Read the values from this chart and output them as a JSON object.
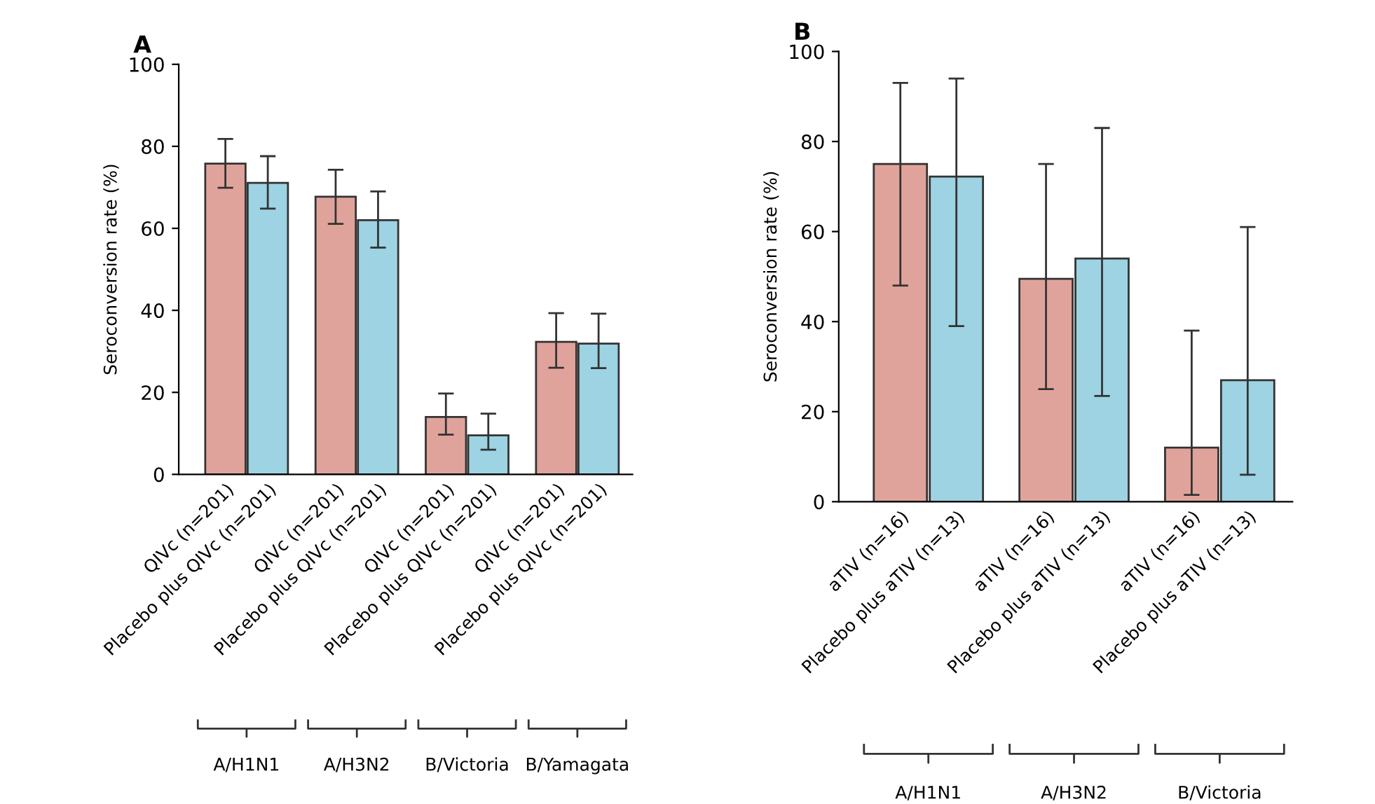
{
  "chart_data": [
    {
      "type": "bar",
      "title": "A",
      "ylabel": "Seroconversion rate (%)",
      "categories": [
        "QIVc (n=201)",
        "Placebo plus QIVc (n=201)",
        "QIVc (n=201)",
        "Placebo plus QIVc (n=201)",
        "QIVc (n=201)",
        "Placebo plus QIVc (n=201)",
        "QIVc (n=201)",
        "Placebo plus QIVc (n=201)"
      ],
      "values": [
        75.8,
        71.1,
        67.7,
        62.0,
        14.0,
        9.5,
        32.3,
        31.9
      ],
      "colors": [
        "#e0a39b",
        "#9dd3e3",
        "#e0a39b",
        "#9dd3e3",
        "#e0a39b",
        "#9dd3e3",
        "#e0a39b",
        "#9dd3e3"
      ],
      "errors": [
        [
          69.9,
          81.8
        ],
        [
          64.8,
          77.6
        ],
        [
          61.1,
          74.3
        ],
        [
          55.3,
          69.0
        ],
        [
          9.7,
          19.7
        ],
        [
          6.0,
          14.8
        ],
        [
          26.0,
          39.3
        ],
        [
          25.9,
          39.2
        ]
      ],
      "annotations": [
        "A/H1N1",
        "A/H3N2",
        "B/Victoria",
        "B/Yamagata"
      ],
      "ylim": [
        0,
        100
      ],
      "yticks": [
        0,
        20,
        40,
        60,
        80,
        100
      ],
      "grid": false,
      "legend": false
    },
    {
      "type": "bar",
      "title": "B",
      "ylabel": "Seroconversion rate (%)",
      "categories": [
        "aTIV (n=16)",
        "Placebo plus aTIV (n=13)",
        "aTIV (n=16)",
        "Placebo plus aTIV (n=13)",
        "aTIV (n=16)",
        "Placebo plus aTIV (n=13)"
      ],
      "values": [
        75.0,
        72.2,
        49.5,
        54.0,
        12.0,
        27.0
      ],
      "colors": [
        "#e0a39b",
        "#9dd3e3",
        "#e0a39b",
        "#9dd3e3",
        "#e0a39b",
        "#9dd3e3"
      ],
      "errors": [
        [
          48.0,
          93.0
        ],
        [
          39.0,
          94.0
        ],
        [
          25.0,
          75.0
        ],
        [
          23.5,
          83.0
        ],
        [
          1.5,
          38.0
        ],
        [
          6.0,
          61.0
        ]
      ],
      "annotations": [
        "A/H1N1",
        "A/H3N2",
        "B/Victoria"
      ],
      "ylim": [
        0,
        100
      ],
      "yticks": [
        0,
        20,
        40,
        60,
        80,
        100
      ],
      "grid": false,
      "legend": false
    }
  ]
}
